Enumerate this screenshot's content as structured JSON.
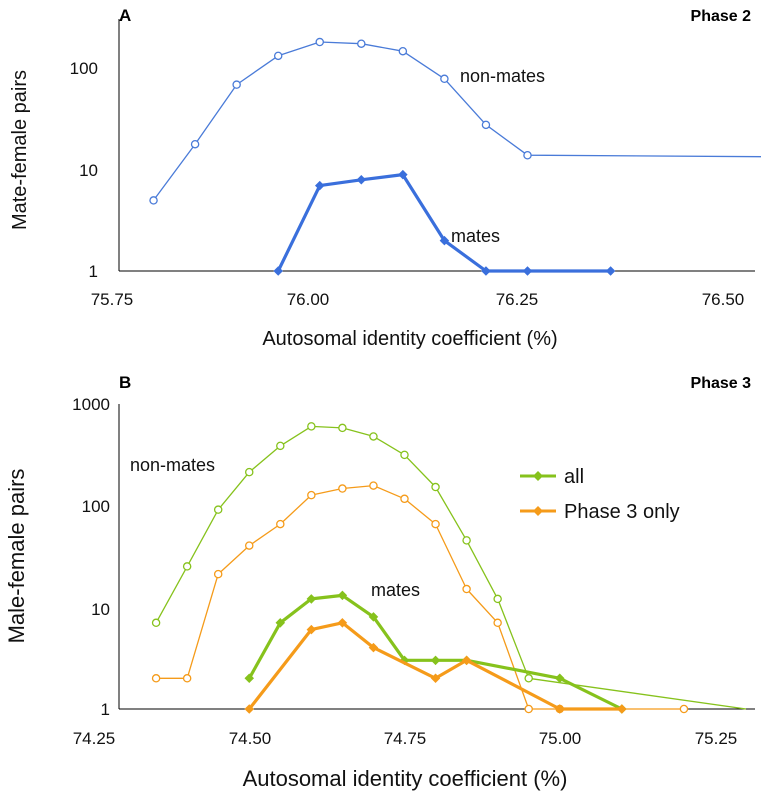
{
  "chart_data": [
    {
      "type": "line",
      "panel": "A",
      "phase_label": "Phase 2",
      "xlabel": "Autosomal identity coefficient (%)",
      "ylabel": "Mate-female pairs",
      "yscale": "log",
      "xlim": [
        75.75,
        76.55
      ],
      "ylim": [
        1,
        200
      ],
      "xticks": [
        "75.75",
        "76.00",
        "76.25",
        "76.50"
      ],
      "yticks": [
        "1",
        "10",
        "100"
      ],
      "colors": {
        "non_mates": "#4a7bd8",
        "mates": "#3a6fdc"
      },
      "annotations": [
        "non-mates",
        "mates"
      ],
      "series": [
        {
          "key": "non_mates",
          "x": [
            75.8,
            75.85,
            75.9,
            75.95,
            76.0,
            76.05,
            76.1,
            76.15,
            76.2,
            76.25,
            76.55
          ],
          "y": [
            5,
            18,
            70,
            135,
            185,
            178,
            150,
            80,
            28,
            14,
            13.5
          ],
          "markers": "open-circle-except-last"
        },
        {
          "key": "mates",
          "x": [
            75.95,
            76.0,
            76.05,
            76.1,
            76.15,
            76.2,
            76.25,
            76.35
          ],
          "y": [
            1,
            7,
            8,
            9,
            2,
            1,
            1,
            1
          ],
          "markers": "diamond"
        }
      ]
    },
    {
      "type": "line",
      "panel": "B",
      "phase_label": "Phase 3",
      "xlabel": "Autosomal identity coefficient (%)",
      "ylabel": "Male-female pairs",
      "yscale": "log",
      "xlim": [
        74.25,
        75.3
      ],
      "ylim": [
        1,
        1000
      ],
      "xticks": [
        "74.25",
        "74.50",
        "74.75",
        "75.00",
        "75.25"
      ],
      "yticks": [
        "1",
        "10",
        "100",
        "1000"
      ],
      "colors": {
        "all": "#86c21c",
        "phase3": "#f59b1a"
      },
      "annotations": [
        "non-mates",
        "mates"
      ],
      "legend": [
        "all",
        "Phase 3 only"
      ],
      "series": [
        {
          "key": "nonmates_all",
          "color_key": "all",
          "x": [
            74.35,
            74.4,
            74.45,
            74.5,
            74.55,
            74.6,
            74.65,
            74.7,
            74.75,
            74.8,
            74.85,
            74.9,
            74.95,
            75.3
          ],
          "y": [
            7,
            25,
            90,
            210,
            380,
            590,
            570,
            470,
            310,
            150,
            45,
            12,
            2,
            1
          ],
          "markers": "open-circle-except-last"
        },
        {
          "key": "nonmates_phase3",
          "color_key": "phase3",
          "x": [
            74.35,
            74.4,
            74.45,
            74.5,
            74.55,
            74.6,
            74.65,
            74.7,
            74.75,
            74.8,
            74.85,
            74.9,
            74.95,
            75.0,
            75.2
          ],
          "y": [
            2,
            2,
            21,
            40,
            65,
            125,
            145,
            155,
            115,
            65,
            15,
            7,
            1,
            1,
            1
          ],
          "markers": "open-circle"
        },
        {
          "key": "mates_all",
          "color_key": "all",
          "x": [
            74.5,
            74.55,
            74.6,
            74.65,
            74.7,
            74.75,
            74.8,
            74.85,
            75.0,
            75.1
          ],
          "y": [
            2,
            7,
            12,
            13,
            8,
            3,
            3,
            3,
            2,
            1
          ],
          "markers": "diamond"
        },
        {
          "key": "mates_phase3",
          "color_key": "phase3",
          "x": [
            74.5,
            74.6,
            74.65,
            74.7,
            74.8,
            74.85,
            75.0,
            75.1
          ],
          "y": [
            1,
            6,
            7,
            4,
            2,
            3,
            1,
            1
          ],
          "markers": "diamond"
        }
      ]
    }
  ]
}
